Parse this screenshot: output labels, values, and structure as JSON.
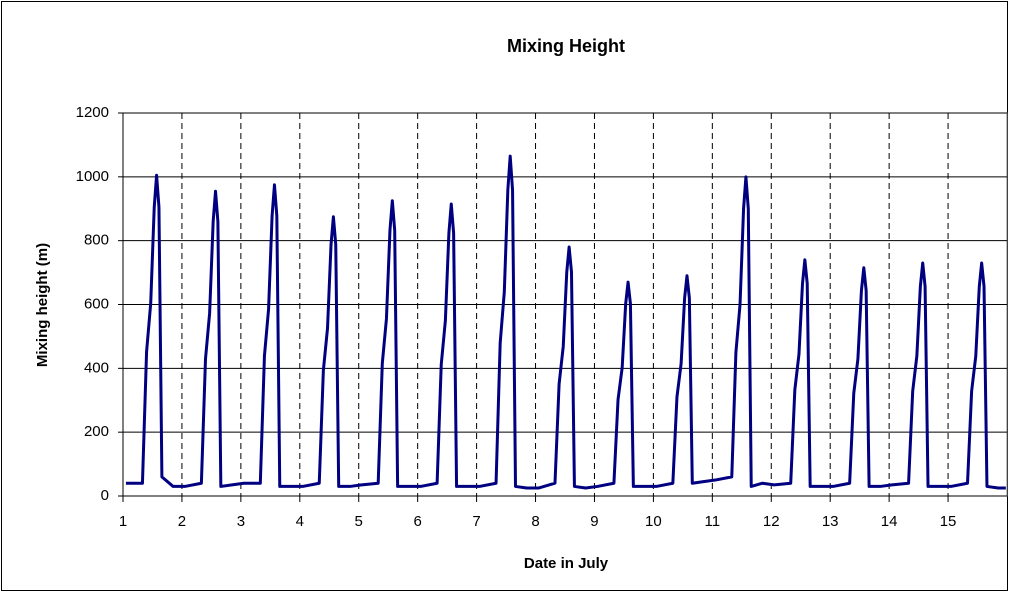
{
  "chart_data": {
    "type": "line",
    "title": "Mixing Height",
    "xlabel": "Date in July",
    "ylabel": "Mixing height (m)",
    "x": [
      1.05,
      1.33,
      1.4,
      1.47,
      1.53,
      1.57,
      1.61,
      1.66,
      1.85,
      2.05,
      2.33,
      2.4,
      2.47,
      2.53,
      2.57,
      2.61,
      2.66,
      2.85,
      3.05,
      3.33,
      3.4,
      3.47,
      3.53,
      3.57,
      3.61,
      3.66,
      3.85,
      4.05,
      4.33,
      4.4,
      4.47,
      4.53,
      4.57,
      4.61,
      4.66,
      4.85,
      5.05,
      5.33,
      5.4,
      5.47,
      5.53,
      5.57,
      5.61,
      5.66,
      5.85,
      6.05,
      6.33,
      6.4,
      6.47,
      6.53,
      6.57,
      6.61,
      6.66,
      6.85,
      7.05,
      7.33,
      7.4,
      7.47,
      7.53,
      7.57,
      7.61,
      7.66,
      7.85,
      8.05,
      8.33,
      8.4,
      8.47,
      8.53,
      8.57,
      8.61,
      8.66,
      8.85,
      9.05,
      9.33,
      9.4,
      9.47,
      9.53,
      9.57,
      9.61,
      9.66,
      9.85,
      10.05,
      10.33,
      10.4,
      10.47,
      10.53,
      10.57,
      10.61,
      10.66,
      10.85,
      11.05,
      11.33,
      11.4,
      11.47,
      11.53,
      11.57,
      11.61,
      11.66,
      11.85,
      12.05,
      12.33,
      12.4,
      12.47,
      12.53,
      12.57,
      12.61,
      12.66,
      12.85,
      13.05,
      13.33,
      13.4,
      13.47,
      13.53,
      13.57,
      13.61,
      13.66,
      13.85,
      14.05,
      14.33,
      14.4,
      14.47,
      14.53,
      14.57,
      14.61,
      14.66,
      14.85,
      15.05,
      15.33,
      15.4,
      15.47,
      15.53,
      15.57,
      15.61,
      15.66,
      15.85,
      15.98
    ],
    "series": [
      {
        "name": "Mixing height",
        "color": "#000080",
        "values": [
          40,
          40,
          452,
          603,
          905,
          1005,
          905,
          60,
          30,
          30,
          40,
          430,
          573,
          860,
          955,
          860,
          30,
          35,
          40,
          40,
          439,
          585,
          878,
          975,
          878,
          30,
          30,
          30,
          40,
          394,
          525,
          788,
          875,
          788,
          30,
          30,
          35,
          40,
          416,
          555,
          833,
          925,
          833,
          30,
          30,
          30,
          40,
          412,
          549,
          824,
          915,
          824,
          30,
          30,
          30,
          40,
          479,
          639,
          959,
          1065,
          959,
          30,
          25,
          25,
          40,
          351,
          468,
          702,
          780,
          702,
          30,
          25,
          30,
          40,
          302,
          402,
          603,
          670,
          603,
          30,
          30,
          30,
          40,
          311,
          414,
          621,
          690,
          621,
          40,
          45,
          50,
          60,
          450,
          600,
          900,
          1000,
          900,
          30,
          40,
          35,
          40,
          333,
          444,
          666,
          740,
          666,
          30,
          30,
          30,
          40,
          322,
          429,
          644,
          715,
          644,
          30,
          30,
          35,
          40,
          329,
          438,
          657,
          730,
          657,
          30,
          30,
          30,
          40,
          329,
          438,
          657,
          730,
          657,
          30,
          25,
          25
        ]
      }
    ],
    "xlim": [
      1,
      16
    ],
    "xticks": [
      1,
      2,
      3,
      4,
      5,
      6,
      7,
      8,
      9,
      10,
      11,
      12,
      13,
      14,
      15
    ],
    "ylim": [
      0,
      1200
    ],
    "yticks": [
      0,
      200,
      400,
      600,
      800,
      1000,
      1200
    ],
    "grid": true
  }
}
